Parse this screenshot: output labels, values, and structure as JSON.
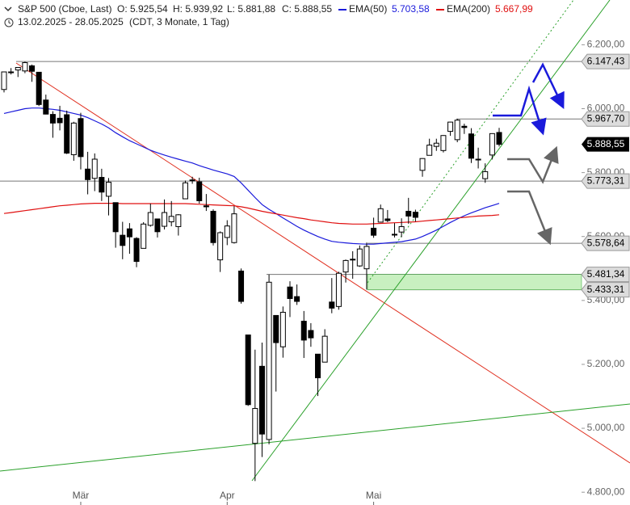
{
  "header": {
    "symbol": "S&P 500 (Cboe, Last)",
    "ohlc": [
      "O: 5.925,54",
      "H: 5.939,92",
      "L: 5.881,88",
      "C: 5.888,55"
    ],
    "range": "13.02.2025 - 28.05.2025",
    "info": "(CDT, 3 Monate, 1 Tag)"
  },
  "chart_data": {
    "type": "candlestick",
    "categories": [
      null,
      null,
      null,
      null,
      null,
      null,
      null,
      null,
      null,
      null,
      null,
      "Mär",
      null,
      null,
      null,
      null,
      null,
      null,
      null,
      null,
      null,
      null,
      null,
      null,
      null,
      null,
      null,
      null,
      null,
      null,
      null,
      null,
      "Apr",
      null,
      null,
      null,
      null,
      null,
      null,
      null,
      null,
      null,
      null,
      null,
      null,
      null,
      null,
      null,
      null,
      null,
      null,
      null,
      null,
      "Mai",
      null,
      null,
      null,
      null,
      null,
      null,
      null,
      null,
      null,
      null,
      null,
      null,
      null,
      null,
      null,
      null,
      null,
      null
    ],
    "open": [
      6060,
      6115,
      6121,
      6118,
      6134,
      6114,
      6027,
      5982,
      5970,
      5981,
      5856,
      5969,
      5811,
      5782,
      5785,
      5726,
      5706,
      5604,
      5624,
      5594,
      5563,
      5635,
      5655,
      5632,
      5646,
      5631,
      5718,
      5775,
      5771,
      5696,
      5679,
      5527,
      5597,
      5581,
      5492,
      5292,
      4953,
      5194,
      4965,
      5353,
      5255,
      5442,
      5412,
      5335,
      5306,
      5232,
      5207,
      5395,
      5381,
      5489,
      5529,
      5508,
      5499,
      5626,
      5645,
      5655,
      5606,
      5614,
      5679,
      5676,
      5807,
      5854,
      5882,
      5869,
      5929,
      5903,
      5945,
      5921,
      5842,
      5781,
      5855,
      5925.54
    ],
    "high": [
      6116,
      6127,
      6129,
      6147,
      6138,
      6115,
      6044,
      5992,
      6009,
      5994,
      5959,
      5987,
      5865,
      5860,
      5812,
      5783,
      5706,
      5646,
      5642,
      5598,
      5645,
      5703,
      5655,
      5716,
      5711,
      5670,
      5775,
      5787,
      5784,
      5733,
      5685,
      5616,
      5651,
      5695,
      5500,
      5292,
      5246,
      5268,
      5481,
      5353,
      5381,
      5460,
      5450,
      5367,
      5329,
      5232,
      5310,
      5470,
      5490,
      5528,
      5554,
      5572,
      5581,
      5659,
      5700,
      5683,
      5642,
      5657,
      5721,
      5684,
      5845,
      5906,
      5906,
      5917,
      5959,
      5968,
      5953,
      5939,
      5878,
      5829,
      5923,
      5939.92
    ],
    "low": [
      6051,
      6107,
      6099,
      6111,
      6084,
      6008,
      5982,
      5909,
      5932,
      5858,
      5837,
      5810,
      5732,
      5742,
      5711,
      5666,
      5565,
      5529,
      5546,
      5504,
      5563,
      5631,
      5597,
      5622,
      5632,
      5603,
      5718,
      5765,
      5703,
      5680,
      5572,
      5489,
      5573,
      5578,
      5390,
      5070,
      4835,
      4910,
      4950,
      5115,
      5221,
      5348,
      5386,
      5220,
      5255,
      5101,
      5207,
      5360,
      5371,
      5456,
      5468,
      5505,
      5434,
      5596,
      5644,
      5645,
      5597,
      5598,
      5640,
      5647,
      5787,
      5854,
      5868,
      5863,
      5915,
      5895,
      5921,
      5830,
      5813,
      5768,
      5841,
      5881.88
    ],
    "close": [
      6115,
      6114,
      6129,
      6144,
      6117,
      6013,
      5983,
      5955,
      5956,
      5861,
      5955,
      5850,
      5778,
      5842,
      5739,
      5770,
      5615,
      5572,
      5599,
      5522,
      5639,
      5675,
      5615,
      5675,
      5663,
      5668,
      5768,
      5777,
      5712,
      5693,
      5581,
      5612,
      5633,
      5671,
      5397,
      5074,
      5062,
      4982,
      5457,
      5268,
      5363,
      5406,
      5397,
      5276,
      5283,
      5158,
      5288,
      5376,
      5485,
      5525,
      5529,
      5561,
      5569,
      5604,
      5687,
      5650,
      5607,
      5631,
      5664,
      5660,
      5844,
      5886,
      5892,
      5916,
      5958,
      5964,
      5941,
      5845,
      5842,
      5803,
      5922,
      5888.55
    ],
    "series": [
      {
        "name": "EMA(50)",
        "color": "#1a1adb",
        "last_label": "5.703,58",
        "values": [
          5985,
          5990,
          5995,
          6000,
          6002,
          6002,
          6000,
          5998,
          5995,
          5990,
          5985,
          5980,
          5972,
          5962,
          5952,
          5940,
          5925,
          5912,
          5900,
          5890,
          5880,
          5870,
          5862,
          5855,
          5848,
          5842,
          5836,
          5830,
          5822,
          5815,
          5808,
          5802,
          5796,
          5788,
          5768,
          5745,
          5722,
          5700,
          5685,
          5672,
          5658,
          5645,
          5632,
          5620,
          5610,
          5600,
          5592,
          5585,
          5582,
          5580,
          5578,
          5577,
          5576,
          5576,
          5578,
          5580,
          5582,
          5584,
          5588,
          5592,
          5600,
          5610,
          5620,
          5632,
          5644,
          5655,
          5665,
          5674,
          5682,
          5690,
          5697,
          5703.58
        ]
      },
      {
        "name": "EMA(200)",
        "color": "#e01010",
        "last_label": "5.667,99",
        "values": [
          5672,
          5675,
          5678,
          5681,
          5684,
          5687,
          5690,
          5693,
          5696,
          5698,
          5700,
          5702,
          5703,
          5704,
          5704,
          5704,
          5704,
          5703,
          5703,
          5703,
          5703,
          5703,
          5703,
          5703,
          5703,
          5703,
          5703,
          5702,
          5701,
          5700,
          5699,
          5698,
          5697,
          5696,
          5693,
          5689,
          5684,
          5679,
          5675,
          5671,
          5667,
          5663,
          5659,
          5656,
          5652,
          5649,
          5646,
          5643,
          5641,
          5640,
          5639,
          5639,
          5639,
          5640,
          5641,
          5642,
          5643,
          5644,
          5645,
          5646,
          5648,
          5650,
          5652,
          5654,
          5656,
          5658,
          5660,
          5662,
          5664,
          5665,
          5666,
          5667.99
        ]
      }
    ],
    "levels": [
      {
        "value": 6147.43,
        "label": "6.147,43"
      },
      {
        "value": 5967.7,
        "label": "5.967,70"
      },
      {
        "value": 5773.31,
        "label": "5.773,31"
      },
      {
        "value": 5578.64,
        "label": "5.578,64"
      },
      {
        "value": 5481.34,
        "label": "5.481,34"
      },
      {
        "value": 5433.31,
        "label": "5.433,31"
      }
    ],
    "last_price": {
      "value": 5888.55,
      "label": "5.888,55"
    },
    "zone_color": "#c8f0c0",
    "ylim": [
      4760,
      6340
    ],
    "yticks": [
      {
        "value": 4800,
        "label": "4.800,00"
      },
      {
        "value": 5000,
        "label": "5.000,00"
      },
      {
        "value": 5200,
        "label": "5.200,00"
      },
      {
        "value": 5400,
        "label": "5.400,00"
      },
      {
        "value": 5600,
        "label": "5.600,00"
      },
      {
        "value": 5800,
        "label": "5.800,00"
      },
      {
        "value": 6000,
        "label": "6.000,00"
      },
      {
        "value": 6200,
        "label": "6.200,00"
      }
    ]
  }
}
